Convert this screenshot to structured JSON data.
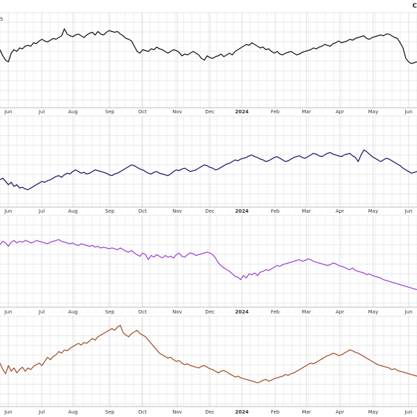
{
  "header": {
    "corner_text": "C",
    "axis_note": "5"
  },
  "colors": {
    "background": "#ffffff",
    "grid": "#dddddd",
    "panel_border": "#bbbbbb"
  },
  "chart_data": {
    "type": "line",
    "x_tick_labels": [
      "Jun",
      "Jul",
      "Aug",
      "Sep",
      "Oct",
      "Nov",
      "Dec",
      "2024",
      "Feb",
      "Mar",
      "Apr",
      "May",
      "Jun"
    ],
    "bold_tick_label": "2024",
    "panels": [
      {
        "name": "",
        "color": "#111111",
        "ylim": [
          0,
          100
        ],
        "values": [
          62,
          55,
          50,
          48,
          58,
          62,
          60,
          64,
          63,
          66,
          67,
          66,
          70,
          69,
          72,
          74,
          72,
          71,
          73,
          75,
          74,
          76,
          78,
          86,
          80,
          78,
          77,
          79,
          80,
          78,
          76,
          79,
          81,
          82,
          79,
          83,
          80,
          79,
          82,
          84,
          83,
          82,
          83,
          80,
          78,
          75,
          74,
          72,
          66,
          60,
          58,
          62,
          61,
          60,
          63,
          62,
          65,
          63,
          62,
          60,
          58,
          60,
          62,
          61,
          59,
          55,
          57,
          56,
          58,
          60,
          58,
          56,
          52,
          50,
          55,
          53,
          52,
          54,
          55,
          57,
          54,
          56,
          58,
          56,
          60,
          62,
          64,
          66,
          68,
          67,
          70,
          68,
          66,
          64,
          65,
          62,
          63,
          60,
          58,
          60,
          57,
          56,
          58,
          59,
          60,
          58,
          56,
          57,
          59,
          60,
          61,
          62,
          64,
          63,
          65,
          66,
          68,
          67,
          66,
          69,
          70,
          72,
          70,
          71,
          72,
          74,
          73,
          75,
          76,
          77,
          78,
          75,
          74,
          76,
          77,
          78,
          79,
          78,
          80,
          80,
          78,
          76,
          75,
          70,
          64,
          52,
          48,
          46,
          47,
          48
        ]
      },
      {
        "name": "",
        "color": "#1a1a6e",
        "ylim": [
          0,
          100
        ],
        "values": [
          28,
          30,
          26,
          22,
          25,
          20,
          22,
          18,
          19,
          17,
          16,
          18,
          20,
          22,
          24,
          26,
          25,
          27,
          28,
          30,
          32,
          33,
          31,
          34,
          36,
          35,
          38,
          40,
          38,
          36,
          37,
          35,
          36,
          38,
          40,
          39,
          38,
          37,
          36,
          34,
          33,
          35,
          36,
          38,
          40,
          42,
          44,
          46,
          45,
          43,
          41,
          40,
          38,
          36,
          35,
          37,
          38,
          36,
          35,
          34,
          33,
          35,
          38,
          40,
          39,
          41,
          42,
          40,
          38,
          39,
          40,
          42,
          44,
          46,
          45,
          43,
          42,
          40,
          41,
          43,
          45,
          47,
          48,
          50,
          52,
          51,
          53,
          54,
          55,
          57,
          58,
          56,
          55,
          53,
          52,
          50,
          51,
          53,
          55,
          56,
          54,
          52,
          50,
          51,
          53,
          55,
          56,
          57,
          55,
          54,
          56,
          58,
          60,
          59,
          57,
          56,
          58,
          60,
          61,
          59,
          58,
          57,
          56,
          58,
          59,
          60,
          57,
          55,
          50,
          58,
          64,
          62,
          59,
          56,
          54,
          52,
          50,
          52,
          54,
          53,
          51,
          49,
          47,
          45,
          42,
          40,
          38,
          36,
          37,
          38
        ]
      },
      {
        "name": "",
        "color": "#9b45d3",
        "ylim": [
          0,
          100
        ],
        "values": [
          70,
          74,
          72,
          68,
          73,
          75,
          72,
          74,
          73,
          75,
          74,
          72,
          73,
          75,
          74,
          73,
          72,
          71,
          73,
          74,
          75,
          76,
          74,
          73,
          72,
          71,
          72,
          70,
          69,
          71,
          70,
          69,
          68,
          69,
          67,
          68,
          66,
          67,
          66,
          65,
          66,
          65,
          64,
          66,
          64,
          62,
          61,
          63,
          60,
          58,
          56,
          60,
          58,
          52,
          57,
          55,
          58,
          56,
          54,
          57,
          55,
          56,
          54,
          58,
          60,
          56,
          55,
          58,
          60,
          59,
          57,
          58,
          59,
          60,
          61,
          60,
          58,
          54,
          48,
          45,
          42,
          40,
          38,
          35,
          32,
          31,
          28,
          33,
          30,
          35,
          34,
          36,
          33,
          37,
          38,
          40,
          39,
          41,
          43,
          45,
          44,
          46,
          47,
          48,
          49,
          50,
          51,
          52,
          50,
          51,
          53,
          52,
          50,
          49,
          48,
          47,
          46,
          45,
          46,
          48,
          47,
          45,
          44,
          43,
          41,
          40,
          42,
          39,
          38,
          37,
          36,
          34,
          35,
          33,
          32,
          31,
          30,
          28,
          27,
          26,
          25,
          24,
          23,
          22,
          21,
          20,
          19,
          18,
          17,
          16
        ]
      },
      {
        "name": "",
        "color": "#a0522d",
        "ylim": [
          0,
          100
        ],
        "values": [
          48,
          40,
          35,
          45,
          38,
          42,
          36,
          40,
          43,
          38,
          42,
          40,
          44,
          46,
          48,
          45,
          50,
          55,
          52,
          56,
          58,
          62,
          60,
          64,
          63,
          66,
          68,
          70,
          72,
          70,
          73,
          72,
          75,
          78,
          76,
          80,
          82,
          84,
          86,
          88,
          90,
          88,
          92,
          94,
          85,
          82,
          80,
          84,
          86,
          88,
          84,
          82,
          80,
          76,
          72,
          68,
          64,
          60,
          58,
          56,
          54,
          55,
          52,
          50,
          51,
          48,
          46,
          47,
          45,
          44,
          43,
          42,
          44,
          45,
          43,
          41,
          40,
          38,
          36,
          38,
          39,
          37,
          35,
          33,
          31,
          32,
          30,
          29,
          28,
          27,
          26,
          25,
          24,
          25,
          27,
          28,
          26,
          27,
          29,
          30,
          31,
          32,
          34,
          33,
          35,
          36,
          38,
          40,
          42,
          44,
          46,
          48,
          47,
          49,
          51,
          53,
          55,
          57,
          58,
          60,
          59,
          57,
          58,
          60,
          62,
          64,
          63,
          61,
          60,
          58,
          56,
          54,
          52,
          50,
          48,
          46,
          45,
          44,
          43,
          42,
          40,
          41,
          39,
          38,
          37,
          36,
          35,
          34,
          33,
          32
        ]
      }
    ]
  }
}
